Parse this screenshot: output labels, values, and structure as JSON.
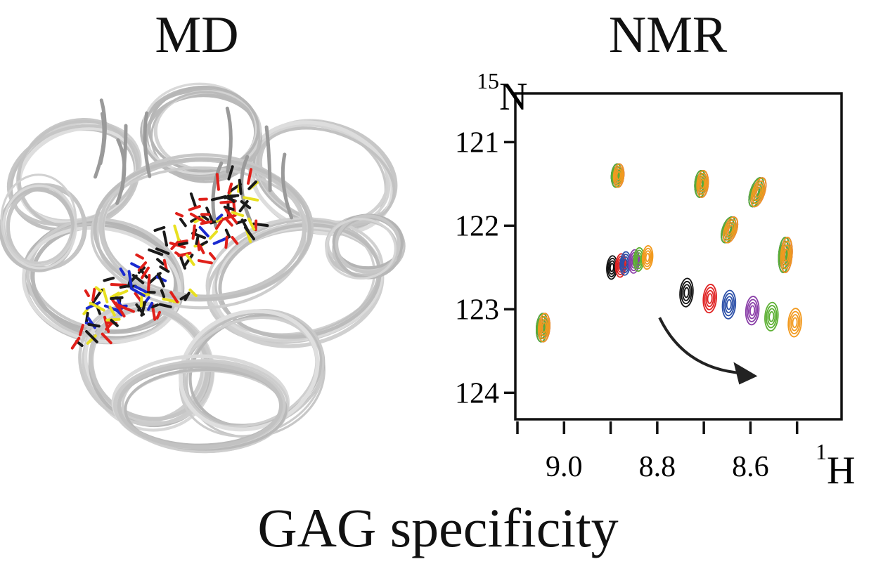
{
  "titles": {
    "left": "MD",
    "right": "NMR",
    "bottom": "GAG specificity"
  },
  "md_panel": {
    "description_icon": "protein-ensemble-icon",
    "colors": {
      "protein": "#cfcfcf",
      "ligand_carbon": "#1a1a1a",
      "ligand_oxygen": "#e0201a",
      "ligand_sulfur": "#e8e020",
      "ligand_nitrogen": "#1a2ad0"
    }
  },
  "chart_data": {
    "type": "scatter",
    "title": "NMR",
    "xlabel_sup": "1",
    "xlabel": "H",
    "ylabel_sup": "15",
    "ylabel": "N",
    "xlim": [
      9.1,
      8.4
    ],
    "ylim": [
      124.3,
      120.4
    ],
    "x_ticks": [
      {
        "value": 9.0,
        "label": "9.0"
      },
      {
        "value": 8.8,
        "label": "8.8"
      },
      {
        "value": 8.6,
        "label": "8.6"
      }
    ],
    "x_minor_ticks": [
      9.1,
      8.9,
      8.7,
      8.5
    ],
    "y_ticks": [
      {
        "value": 121,
        "label": "121"
      },
      {
        "value": 122,
        "label": "122"
      },
      {
        "value": 123,
        "label": "123"
      },
      {
        "value": 124,
        "label": "124"
      }
    ],
    "series_colors": [
      "#111111",
      "#e02424",
      "#2b4fa8",
      "#8a3fa8",
      "#5cb033",
      "#f29a1f"
    ],
    "peaks": [
      {
        "id": "p1",
        "x": 9.045,
        "y": 123.22,
        "w": 0.024,
        "h": 0.34,
        "shift": [
          0,
          0
        ]
      },
      {
        "id": "p2",
        "x": 8.885,
        "y": 121.4,
        "w": 0.022,
        "h": 0.28,
        "shift": [
          0,
          0
        ]
      },
      {
        "id": "p3",
        "x": 8.895,
        "y": 122.5,
        "w": 0.022,
        "h": 0.28,
        "shift": [
          0.012,
          0.02
        ]
      },
      {
        "id": "p4",
        "x": 8.705,
        "y": 121.5,
        "w": 0.024,
        "h": 0.32,
        "shift": [
          0,
          0
        ]
      },
      {
        "id": "p5",
        "x": 8.585,
        "y": 121.6,
        "w": 0.026,
        "h": 0.36,
        "shift": [
          0,
          0
        ]
      },
      {
        "id": "p6",
        "x": 8.645,
        "y": 122.05,
        "w": 0.026,
        "h": 0.32,
        "shift": [
          0,
          0
        ]
      },
      {
        "id": "p7",
        "x": 8.525,
        "y": 122.35,
        "w": 0.024,
        "h": 0.42,
        "shift": [
          0,
          0
        ]
      },
      {
        "id": "p8",
        "x": 8.735,
        "y": 122.8,
        "w": 0.028,
        "h": 0.34,
        "shift": [
          0.038,
          -0.06
        ]
      }
    ],
    "arrow": {
      "from": [
        8.795,
        123.1
      ],
      "to": [
        8.585,
        123.8
      ]
    }
  }
}
